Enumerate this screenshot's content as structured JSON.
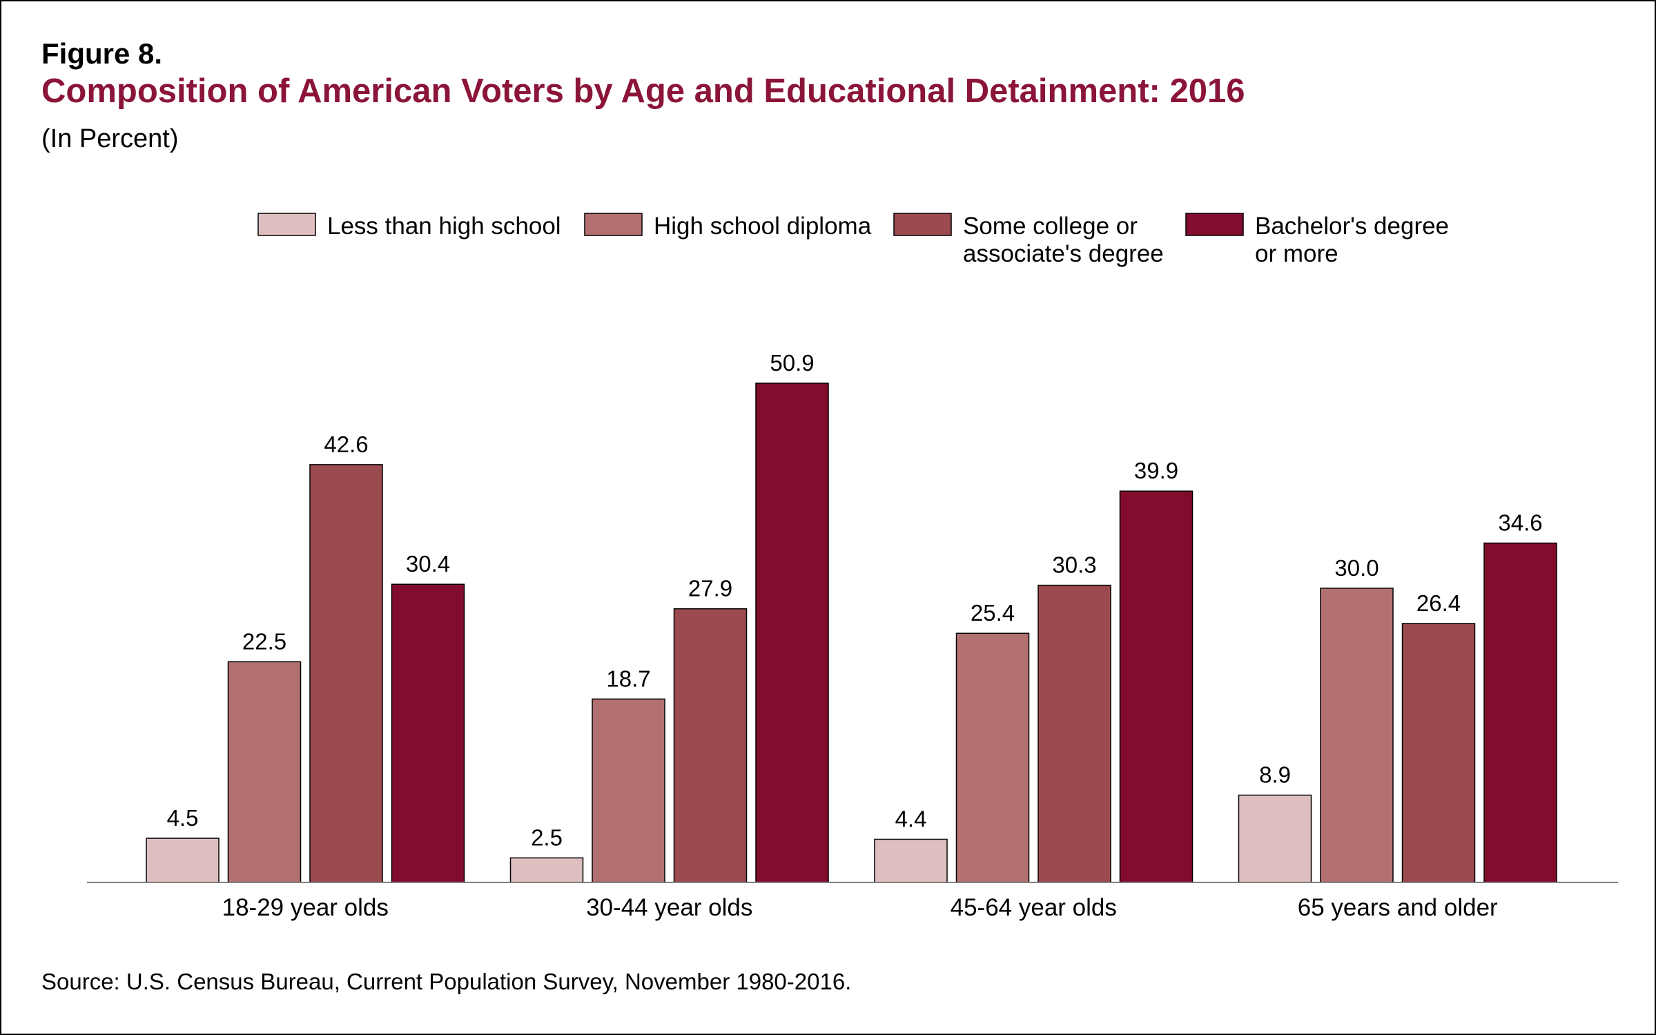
{
  "figure": {
    "label": "Figure 8.",
    "title": "Composition of American Voters by Age and Educational Detainment: 2016",
    "subtitle": "(In Percent)",
    "source": "Source: U.S. Census Bureau, Current Population Survey, November 1980-2016."
  },
  "colors": {
    "title": "#8b1538",
    "axis": "#808080",
    "bar_outline": "#000000"
  },
  "chart_data": {
    "type": "bar",
    "categories": [
      "18-29 year olds",
      "30-44 year olds",
      "45-64 year olds",
      "65 years and older"
    ],
    "series": [
      {
        "name": "Less than high school",
        "legend_lines": [
          "Less than high school"
        ],
        "color": "#ddbfbf",
        "values": [
          4.5,
          2.5,
          4.4,
          8.9
        ]
      },
      {
        "name": "High school diploma",
        "legend_lines": [
          "High school diploma"
        ],
        "color": "#b37070",
        "values": [
          22.5,
          18.7,
          25.4,
          30.0
        ]
      },
      {
        "name": "Some college or associate's degree",
        "legend_lines": [
          "Some college or",
          "associate's degree"
        ],
        "color": "#9b4a50",
        "values": [
          42.6,
          27.9,
          30.3,
          26.4
        ]
      },
      {
        "name": "Bachelor's degree or more",
        "legend_lines": [
          "Bachelor's degree",
          "or more"
        ],
        "color": "#820c2e",
        "values": [
          30.4,
          50.9,
          39.9,
          34.6
        ]
      }
    ],
    "ylim": [
      0,
      50.9
    ],
    "legend_position": "top-center",
    "grid": false,
    "value_labels": true
  }
}
